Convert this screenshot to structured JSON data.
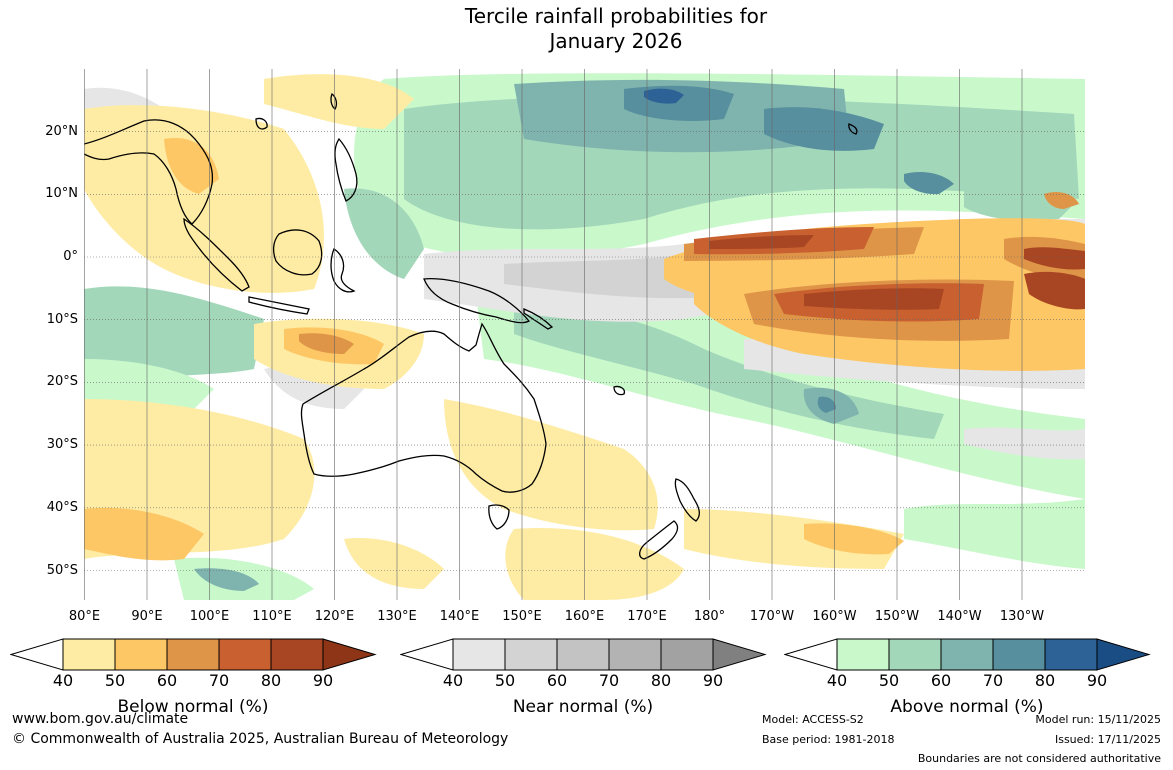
{
  "header": {
    "title_line1": "Tercile rainfall probabilities for",
    "title_line2": "January 2026"
  },
  "map": {
    "latitude_labels": [
      "20°N",
      "10°N",
      "0°",
      "10°S",
      "20°S",
      "30°S",
      "40°S",
      "50°S"
    ],
    "longitude_labels": [
      "80°E",
      "90°E",
      "100°E",
      "110°E",
      "120°E",
      "130°E",
      "140°E",
      "150°E",
      "160°E",
      "170°E",
      "180°",
      "170°W",
      "160°W",
      "150°W",
      "140°W",
      "130°W"
    ],
    "gridlines": true
  },
  "legend": {
    "below": {
      "title": "Below normal (%)",
      "ticks": [
        "40",
        "50",
        "60",
        "70",
        "80",
        "90"
      ],
      "colors": [
        "#ffffff",
        "#feeca5",
        "#fdc765",
        "#df9548",
        "#c8602f",
        "#a84523",
        "#8d3516"
      ]
    },
    "near": {
      "title": "Near normal (%)",
      "ticks": [
        "40",
        "50",
        "60",
        "70",
        "80",
        "90"
      ],
      "colors": [
        "#ffffff",
        "#e6e6e6",
        "#d3d3d3",
        "#c3c3c3",
        "#b3b3b3",
        "#a2a2a2",
        "#808080"
      ]
    },
    "above": {
      "title": "Above normal (%)",
      "ticks": [
        "40",
        "50",
        "60",
        "70",
        "80",
        "90"
      ],
      "colors": [
        "#ffffff",
        "#c9f8cb",
        "#a3d7ba",
        "#7fb4ae",
        "#578f9e",
        "#2d6296",
        "#1b4d85"
      ]
    }
  },
  "footer": {
    "website": "www.bom.gov.au/climate",
    "copyright": "© Commonwealth of Australia 2025, Australian Bureau of Meteorology",
    "model": "Model: ACCESS-S2",
    "base_period": "Base period: 1981-2018",
    "model_run": "Model run: 15/11/2025",
    "issued": "Issued: 17/11/2025",
    "disclaimer": "Boundaries are not considered authoritative"
  }
}
